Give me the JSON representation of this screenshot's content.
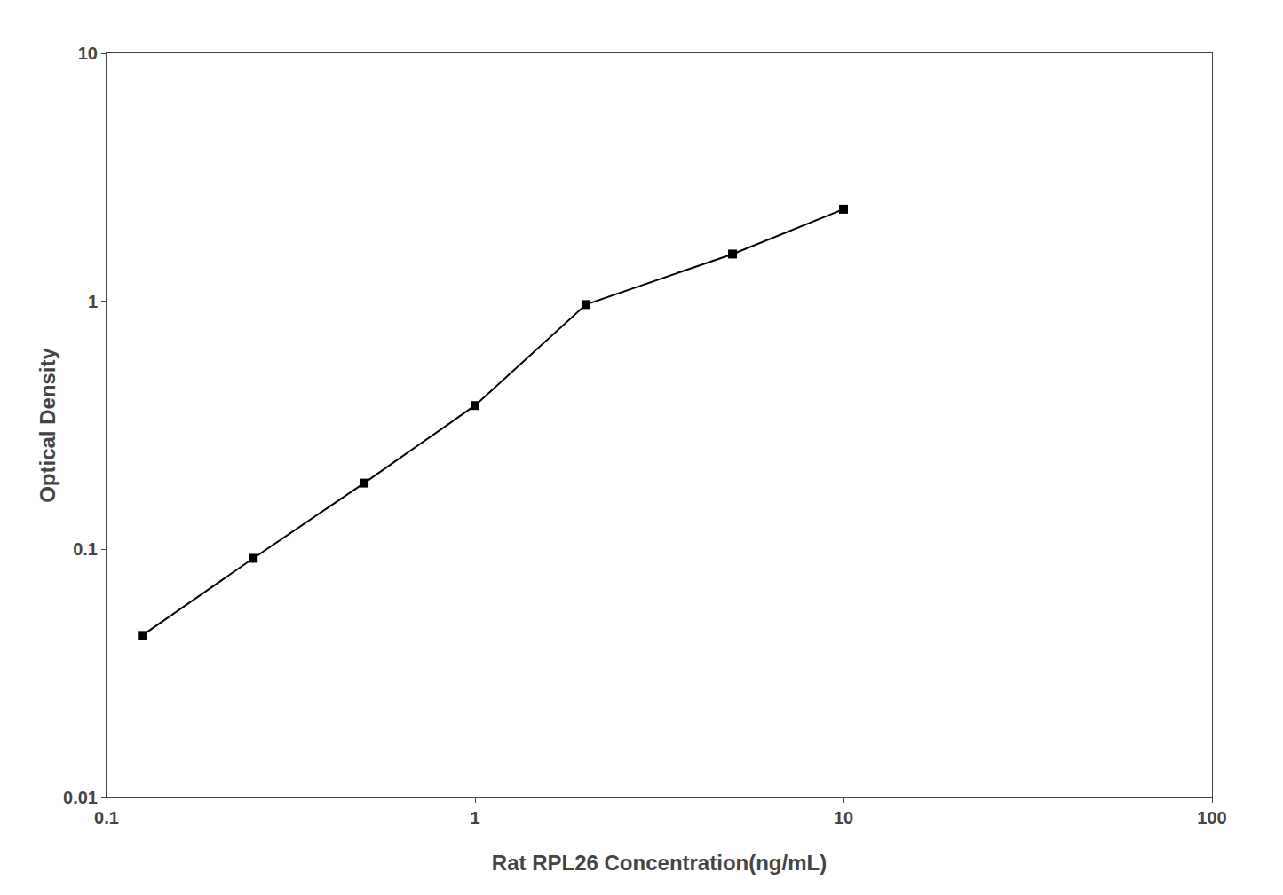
{
  "chart_data": {
    "type": "line",
    "x": [
      0.125,
      0.25,
      0.5,
      1.0,
      2.0,
      5.0,
      10.0
    ],
    "values": [
      0.045,
      0.092,
      0.185,
      0.38,
      0.97,
      1.55,
      2.35
    ],
    "xlabel": "Rat RPL26 Concentration(ng/mL)",
    "ylabel": "Optical Density",
    "xlim": [
      0.1,
      100
    ],
    "ylim": [
      0.01,
      10
    ],
    "xticks": [
      0.1,
      1,
      10,
      100
    ],
    "yticks": [
      0.01,
      0.1,
      1,
      10
    ],
    "log": true,
    "grid": false,
    "color": "#000000",
    "marker": "square"
  }
}
